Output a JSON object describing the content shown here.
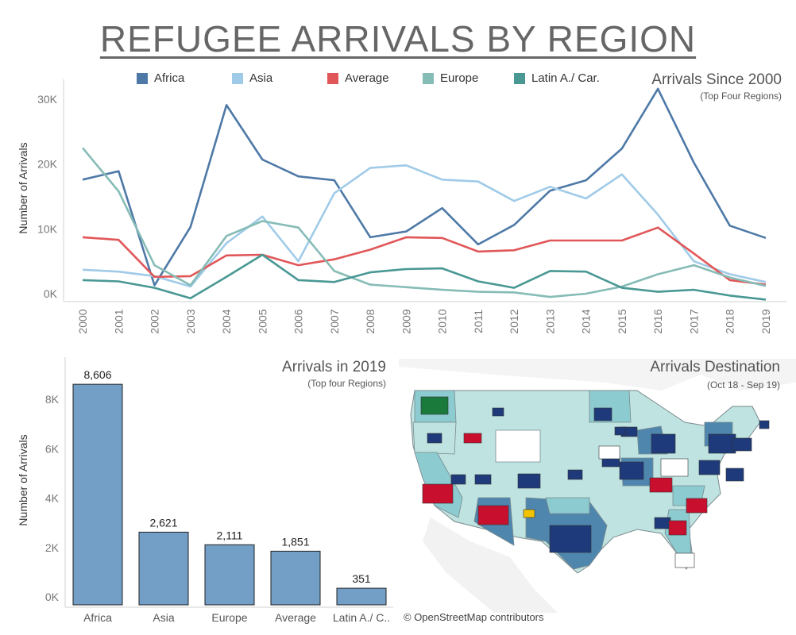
{
  "title": "REFUGEE ARRIVALS BY REGION",
  "legend": [
    {
      "label": "Africa",
      "color": "#4e79a7"
    },
    {
      "label": "Asia",
      "color": "#a0cbe8"
    },
    {
      "label": "Average",
      "color": "#e15759"
    },
    {
      "label": "Europe",
      "color": "#86bcb6"
    },
    {
      "label": "Latin A./ Car.",
      "color": "#499894"
    }
  ],
  "line_panel": {
    "title": "Arrivals Since 2000",
    "subtitle": "(Top Four Regions)"
  },
  "bar_panel": {
    "title": "Arrivals in 2019",
    "subtitle": "(Top four Regions)"
  },
  "map_panel": {
    "title": "Arrivals Destination",
    "subtitle": "(Oct 18 - Sep 19)",
    "attribution": "© OpenStreetMap contributors",
    "state_fill_light": "#bfe3e0",
    "state_fill_mid": "#8ccbd0",
    "state_fill_dark": "#4f86ad",
    "flag_icon": "state-flag-icon"
  },
  "chart_data": [
    {
      "type": "line",
      "title": "Arrivals Since 2000",
      "subtitle": "(Top Four Regions)",
      "ylabel": "Number of Arrivals",
      "ylim": [
        0,
        33000
      ],
      "yticks": [
        0,
        10000,
        20000,
        30000
      ],
      "ytick_labels": [
        "0K",
        "10K",
        "20K",
        "30K"
      ],
      "x": [
        2000,
        2001,
        2002,
        2003,
        2004,
        2005,
        2006,
        2007,
        2008,
        2009,
        2010,
        2011,
        2012,
        2013,
        2014,
        2015,
        2016,
        2017,
        2018,
        2019
      ],
      "series": [
        {
          "name": "Africa",
          "color": "#4e79a7",
          "values": [
            17600,
            18900,
            1300,
            10300,
            29100,
            20700,
            18100,
            17500,
            8700,
            9600,
            13200,
            7600,
            10600,
            15900,
            17500,
            22400,
            31600,
            20200,
            10500,
            8600
          ]
        },
        {
          "name": "Asia",
          "color": "#a0cbe8",
          "values": [
            3700,
            3400,
            2700,
            1100,
            7800,
            11900,
            5000,
            15500,
            19400,
            19800,
            17600,
            17300,
            14300,
            16500,
            14700,
            18400,
            12200,
            5000,
            3000,
            1800
          ]
        },
        {
          "name": "Average",
          "color": "#e15759",
          "values": [
            8700,
            8300,
            2600,
            2700,
            5900,
            6000,
            4400,
            5300,
            6800,
            8700,
            8600,
            6500,
            6700,
            8200,
            8200,
            8200,
            10200,
            6200,
            2100,
            1400
          ]
        },
        {
          "name": "Europe",
          "color": "#86bcb6",
          "values": [
            22500,
            15800,
            4400,
            1300,
            8900,
            11200,
            10200,
            3500,
            1400,
            1000,
            600,
            300,
            200,
            -500,
            0,
            1100,
            3000,
            4400,
            2500,
            1200
          ]
        },
        {
          "name": "Latin A./ Car.",
          "color": "#499894",
          "values": [
            2100,
            1900,
            900,
            -700,
            2600,
            6000,
            2100,
            1800,
            3300,
            3800,
            3900,
            1900,
            900,
            3500,
            3400,
            900,
            300,
            600,
            -300,
            -900
          ]
        }
      ]
    },
    {
      "type": "bar",
      "title": "Arrivals in 2019",
      "subtitle": "(Top four Regions)",
      "ylabel": "Number of Arrivals",
      "ylim": [
        -300,
        9000
      ],
      "yticks": [
        0,
        2000,
        4000,
        6000,
        8000
      ],
      "ytick_labels": [
        "0K",
        "2K",
        "4K",
        "6K",
        "8K"
      ],
      "categories": [
        "Africa",
        "Asia",
        "Europe",
        "Average",
        "Latin A./ C.."
      ],
      "values": [
        8606,
        2621,
        2111,
        1851,
        351
      ],
      "value_labels": [
        "8,606",
        "2,621",
        "2,111",
        "1,851",
        "351"
      ],
      "color": "#739fc7"
    }
  ]
}
